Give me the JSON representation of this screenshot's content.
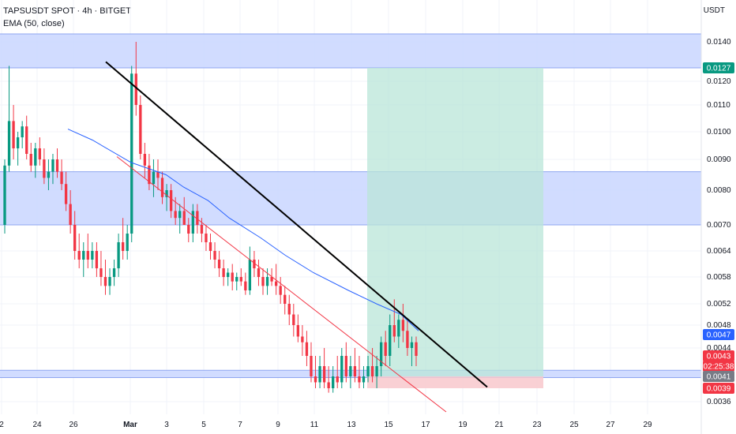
{
  "header": {
    "symbol": "TAPSUSDT SPOT · 4h · BITGET",
    "indicator": "EMA (50, close)",
    "currency": "USDT"
  },
  "colors": {
    "up": "#089981",
    "down": "#f23645",
    "ema": "#2962ff",
    "zone": "#c9d6ff",
    "target": "#b9e6d8",
    "stop": "#f8c8cd",
    "trendline": "#000000",
    "support_line": "#f23645"
  },
  "chart_data": {
    "type": "candlestick",
    "x_ticks": [
      "2",
      "24",
      "26",
      "Mar",
      "3",
      "5",
      "7",
      "9",
      "11",
      "13",
      "15",
      "17",
      "19",
      "21",
      "23",
      "25",
      "27",
      "29"
    ],
    "y_ticks": [
      "0.0140",
      "0.0120",
      "0.0110",
      "0.0100",
      "0.0090",
      "0.0080",
      "0.0070",
      "0.0064",
      "0.0058",
      "0.0052",
      "0.0048",
      "0.0044",
      "0.0036"
    ],
    "price_labels": [
      {
        "text": "0.0127",
        "color": "#089981"
      },
      {
        "text": "0.0047",
        "color": "#2962ff"
      },
      {
        "text": "0.0043",
        "color": "#f23645"
      },
      {
        "text": "02:25:38",
        "color": "#f23645"
      },
      {
        "text": "0.0041",
        "color": "#787b86"
      },
      {
        "text": "0.0039",
        "color": "#f23645"
      }
    ],
    "zones": [
      {
        "from": 0.0127,
        "to": 0.0142
      },
      {
        "from": 0.007,
        "to": 0.0086
      },
      {
        "from": 0.00408,
        "to": 0.00416
      }
    ],
    "position": {
      "entry": 0.0041,
      "target": 0.0127,
      "stop": 0.0039
    },
    "trendlines": [
      {
        "from": [
          28.0,
          0.013
        ],
        "to": [
          20.7,
          0.0039
        ],
        "color": "black"
      },
      {
        "from": [
          29.0,
          0.0091
        ],
        "to": [
          17.6,
          0.0034
        ],
        "color": "red"
      }
    ],
    "candles": [
      [
        0.007,
        0.009,
        0.0068,
        0.0088
      ],
      [
        0.0088,
        0.0128,
        0.0086,
        0.0104
      ],
      [
        0.0104,
        0.011,
        0.009,
        0.0094
      ],
      [
        0.0094,
        0.01,
        0.0088,
        0.0098
      ],
      [
        0.0098,
        0.0104,
        0.0094,
        0.0102
      ],
      [
        0.0102,
        0.0106,
        0.009,
        0.0092
      ],
      [
        0.0092,
        0.0096,
        0.0086,
        0.0088
      ],
      [
        0.0088,
        0.0096,
        0.0084,
        0.0094
      ],
      [
        0.0094,
        0.0098,
        0.0088,
        0.009
      ],
      [
        0.009,
        0.0094,
        0.0082,
        0.0084
      ],
      [
        0.0084,
        0.009,
        0.008,
        0.0086
      ],
      [
        0.0086,
        0.0092,
        0.0082,
        0.009
      ],
      [
        0.009,
        0.0094,
        0.0084,
        0.0086
      ],
      [
        0.0086,
        0.009,
        0.008,
        0.0082
      ],
      [
        0.0082,
        0.0086,
        0.0074,
        0.0076
      ],
      [
        0.0076,
        0.008,
        0.0068,
        0.007
      ],
      [
        0.007,
        0.0074,
        0.0062,
        0.0064
      ],
      [
        0.0064,
        0.0068,
        0.006,
        0.0062
      ],
      [
        0.0062,
        0.0066,
        0.0058,
        0.0064
      ],
      [
        0.0064,
        0.0068,
        0.006,
        0.0062
      ],
      [
        0.0062,
        0.0066,
        0.006,
        0.0064
      ],
      [
        0.0064,
        0.0066,
        0.0058,
        0.006
      ],
      [
        0.006,
        0.0064,
        0.0056,
        0.0058
      ],
      [
        0.0058,
        0.0062,
        0.0054,
        0.0056
      ],
      [
        0.0056,
        0.006,
        0.0054,
        0.0058
      ],
      [
        0.0058,
        0.0062,
        0.0056,
        0.006
      ],
      [
        0.006,
        0.0068,
        0.0058,
        0.0066
      ],
      [
        0.0066,
        0.0072,
        0.0062,
        0.0064
      ],
      [
        0.0064,
        0.007,
        0.0062,
        0.0068
      ],
      [
        0.0068,
        0.0128,
        0.0066,
        0.0124
      ],
      [
        0.0124,
        0.014,
        0.0106,
        0.011
      ],
      [
        0.011,
        0.0114,
        0.009,
        0.0092
      ],
      [
        0.0092,
        0.0096,
        0.0084,
        0.0088
      ],
      [
        0.0088,
        0.0092,
        0.008,
        0.0082
      ],
      [
        0.0082,
        0.009,
        0.0078,
        0.0086
      ],
      [
        0.0086,
        0.009,
        0.008,
        0.0084
      ],
      [
        0.0084,
        0.0086,
        0.0076,
        0.0078
      ],
      [
        0.0078,
        0.0082,
        0.0074,
        0.008
      ],
      [
        0.008,
        0.0082,
        0.0072,
        0.0074
      ],
      [
        0.0074,
        0.0078,
        0.007,
        0.0072
      ],
      [
        0.0072,
        0.0076,
        0.0068,
        0.0074
      ],
      [
        0.0074,
        0.0078,
        0.007,
        0.007
      ],
      [
        0.007,
        0.0072,
        0.0066,
        0.0068
      ],
      [
        0.0068,
        0.0076,
        0.0066,
        0.0074
      ],
      [
        0.0074,
        0.0076,
        0.0068,
        0.007
      ],
      [
        0.007,
        0.0072,
        0.0066,
        0.0068
      ],
      [
        0.0068,
        0.007,
        0.0064,
        0.0066
      ],
      [
        0.0066,
        0.0068,
        0.0062,
        0.0064
      ],
      [
        0.0064,
        0.0066,
        0.006,
        0.0062
      ],
      [
        0.0062,
        0.0064,
        0.0058,
        0.006
      ],
      [
        0.006,
        0.0062,
        0.0056,
        0.0058
      ],
      [
        0.0058,
        0.006,
        0.0056,
        0.0059
      ],
      [
        0.0059,
        0.0061,
        0.0055,
        0.0057
      ],
      [
        0.0057,
        0.0059,
        0.0055,
        0.0058
      ],
      [
        0.0058,
        0.006,
        0.0056,
        0.0057
      ],
      [
        0.0057,
        0.0059,
        0.0054,
        0.0055
      ],
      [
        0.0055,
        0.0065,
        0.0054,
        0.0062
      ],
      [
        0.0062,
        0.0064,
        0.0058,
        0.006
      ],
      [
        0.006,
        0.0062,
        0.0056,
        0.0058
      ],
      [
        0.0058,
        0.006,
        0.0054,
        0.0056
      ],
      [
        0.0056,
        0.006,
        0.0054,
        0.0058
      ],
      [
        0.0058,
        0.006,
        0.0056,
        0.0057
      ],
      [
        0.0057,
        0.0061,
        0.0054,
        0.0056
      ],
      [
        0.0056,
        0.0058,
        0.0052,
        0.0054
      ],
      [
        0.0054,
        0.0056,
        0.005,
        0.0052
      ],
      [
        0.0052,
        0.0054,
        0.0048,
        0.005
      ],
      [
        0.005,
        0.0052,
        0.0046,
        0.0048
      ],
      [
        0.0048,
        0.005,
        0.0045,
        0.0046
      ],
      [
        0.0046,
        0.0048,
        0.0043,
        0.0045
      ],
      [
        0.0045,
        0.0047,
        0.0042,
        0.0043
      ],
      [
        0.0043,
        0.0045,
        0.004,
        0.0041
      ],
      [
        0.0041,
        0.0043,
        0.0039,
        0.004
      ],
      [
        0.004,
        0.0043,
        0.0039,
        0.0042
      ],
      [
        0.0042,
        0.0044,
        0.0039,
        0.004
      ],
      [
        0.004,
        0.0042,
        0.0038,
        0.0039
      ],
      [
        0.0039,
        0.0042,
        0.0038,
        0.0041
      ],
      [
        0.0041,
        0.0043,
        0.0039,
        0.004
      ],
      [
        0.004,
        0.0044,
        0.0039,
        0.0043
      ],
      [
        0.0043,
        0.0045,
        0.004,
        0.0041
      ],
      [
        0.0041,
        0.0043,
        0.0039,
        0.0042
      ],
      [
        0.0042,
        0.0044,
        0.004,
        0.0041
      ],
      [
        0.0041,
        0.0043,
        0.0039,
        0.004
      ],
      [
        0.004,
        0.0042,
        0.0039,
        0.0041
      ],
      [
        0.0041,
        0.0043,
        0.004,
        0.0042
      ],
      [
        0.0042,
        0.0044,
        0.004,
        0.0041
      ],
      [
        0.0041,
        0.0043,
        0.0039,
        0.0042
      ],
      [
        0.0042,
        0.0046,
        0.0041,
        0.0045
      ],
      [
        0.0045,
        0.0047,
        0.0042,
        0.0043
      ],
      [
        0.0043,
        0.005,
        0.0042,
        0.0048
      ],
      [
        0.0048,
        0.0053,
        0.0045,
        0.0046
      ],
      [
        0.0046,
        0.005,
        0.0044,
        0.0049
      ],
      [
        0.0049,
        0.0052,
        0.0045,
        0.0047
      ],
      [
        0.0047,
        0.0049,
        0.0043,
        0.0044
      ],
      [
        0.0044,
        0.0046,
        0.0042,
        0.0045
      ],
      [
        0.0045,
        0.0046,
        0.0042,
        0.0043
      ]
    ],
    "ema": [
      [
        0,
        0.0101
      ],
      [
        0.07,
        0.0097
      ],
      [
        0.18,
        0.0089
      ],
      [
        0.28,
        0.0085
      ],
      [
        0.33,
        0.0081
      ],
      [
        0.4,
        0.0077
      ],
      [
        0.46,
        0.0072
      ],
      [
        0.55,
        0.0067
      ],
      [
        0.62,
        0.0063
      ],
      [
        0.7,
        0.0059
      ],
      [
        0.8,
        0.0055
      ],
      [
        0.88,
        0.0052
      ],
      [
        0.95,
        0.005
      ],
      [
        1.0,
        0.0047
      ]
    ]
  }
}
